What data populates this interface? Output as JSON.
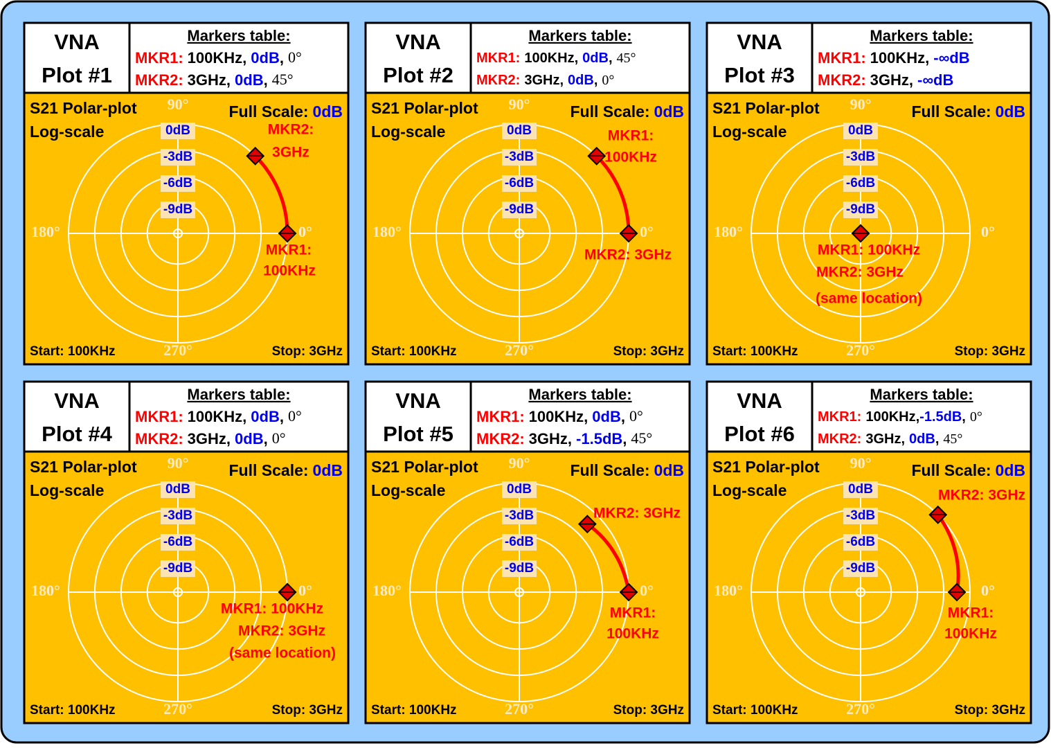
{
  "panels": [
    {
      "title": [
        "VNA",
        "Plot #1"
      ],
      "table_title": "Markers table:",
      "rows": [
        {
          "marker": "MKR1:",
          "freq": "100KHz,",
          "mag": {
            "value": 0,
            "label": "0dB"
          },
          "sep": ",",
          "angle": {
            "value": 0,
            "label": "0°"
          }
        },
        {
          "marker": "MKR2:",
          "freq": "3GHz,",
          "mag": {
            "value": 0,
            "label": "0dB"
          },
          "sep": ",",
          "angle": {
            "value": 45,
            "label": "45°"
          }
        }
      ],
      "plot_title": [
        "S21 Polar-plot",
        "Log-scale"
      ],
      "full_scale": [
        "Full Scale:",
        "0dB"
      ],
      "angle_labels": [
        "90°",
        "180°",
        "0°",
        "270°"
      ],
      "ring_labels": [
        "0dB",
        "-3dB",
        "-6dB",
        "-9dB"
      ],
      "start": "Start: 100KHz",
      "stop": "Stop: 3GHz",
      "annotations": [
        "MKR2:",
        "3GHz",
        "MKR1:",
        "100KHz"
      ]
    },
    {
      "title": [
        "VNA",
        "Plot #2"
      ],
      "table_title": "Markers table:",
      "rows": [
        {
          "marker": "MKR1:",
          "freq": "100KHz,",
          "mag": {
            "value": 0,
            "label": "0dB"
          },
          "sep": ",",
          "angle": {
            "value": 45,
            "label": "45°"
          }
        },
        {
          "marker": "MKR2:",
          "freq": "3GHz,",
          "mag": {
            "value": 0,
            "label": "0dB"
          },
          "sep": ",",
          "angle": {
            "value": 0,
            "label": "0°"
          }
        }
      ],
      "plot_title": [
        "S21 Polar-plot",
        "Log-scale"
      ],
      "full_scale": [
        "Full Scale:",
        "0dB"
      ],
      "angle_labels": [
        "90°",
        "180°",
        "0°",
        "270°"
      ],
      "ring_labels": [
        "0dB",
        "-3dB",
        "-6dB",
        "-9dB"
      ],
      "start": "Start: 100KHz",
      "stop": "Stop: 3GHz",
      "annotations": [
        "MKR1:",
        "100KHz",
        "MKR2: 3GHz"
      ]
    },
    {
      "title": [
        "VNA",
        "Plot #3"
      ],
      "table_title": "Markers table:",
      "rows": [
        {
          "marker": "MKR1:",
          "freq": "100KHz,",
          "mag": {
            "value": null,
            "label": "-∞dB"
          }
        },
        {
          "marker": "MKR2:",
          "freq": "3GHz,",
          "mag": {
            "value": null,
            "label": "-∞dB"
          }
        }
      ],
      "plot_title": [
        "S21 Polar-plot",
        "Log-scale"
      ],
      "full_scale": [
        "Full Scale:",
        "0dB"
      ],
      "angle_labels": [
        "90°",
        "180°",
        "0°",
        "270°"
      ],
      "ring_labels": [
        "0dB",
        "-3dB",
        "-6dB",
        "-9dB"
      ],
      "start": "Start: 100KHz",
      "stop": "Stop: 3GHz",
      "annotations": [
        "MKR1: 100KHz",
        "MKR2: 3GHz",
        "(same location)"
      ]
    },
    {
      "title": [
        "VNA",
        "Plot #4"
      ],
      "table_title": "Markers table:",
      "rows": [
        {
          "marker": "MKR1:",
          "freq": "100KHz,",
          "mag": {
            "value": 0,
            "label": "0dB"
          },
          "sep": ",",
          "angle": {
            "value": 0,
            "label": "0°"
          }
        },
        {
          "marker": "MKR2:",
          "freq": "3GHz,",
          "mag": {
            "value": 0,
            "label": "0dB"
          },
          "sep": ",",
          "angle": {
            "value": 0,
            "label": "0°"
          }
        }
      ],
      "plot_title": [
        "S21 Polar-plot",
        "Log-scale"
      ],
      "full_scale": [
        "Full Scale:",
        "0dB"
      ],
      "angle_labels": [
        "90°",
        "180°",
        "0°",
        "270°"
      ],
      "ring_labels": [
        "0dB",
        "-3dB",
        "-6dB",
        "-9dB"
      ],
      "start": "Start: 100KHz",
      "stop": "Stop: 3GHz",
      "annotations": [
        "MKR1: 100KHz",
        "MKR2: 3GHz",
        "(same location)"
      ]
    },
    {
      "title": [
        "VNA",
        "Plot #5"
      ],
      "table_title": "Markers table:",
      "rows": [
        {
          "marker": "MKR1:",
          "freq": "100KHz,",
          "mag": {
            "value": 0,
            "label": "0dB"
          },
          "sep": ",",
          "angle": {
            "value": 0,
            "label": "0°"
          }
        },
        {
          "marker": "MKR2:",
          "freq": "3GHz,",
          "mag": {
            "value": -1.5,
            "label": "-1.5dB"
          },
          "sep": ",",
          "angle": {
            "value": 45,
            "label": "45°"
          }
        }
      ],
      "plot_title": [
        "S21 Polar-plot",
        "Log-scale"
      ],
      "full_scale": [
        "Full Scale:",
        "0dB"
      ],
      "angle_labels": [
        "90°",
        "180°",
        "0°",
        "270°"
      ],
      "ring_labels": [
        "0dB",
        "-3dB",
        "-6dB",
        "-9dB"
      ],
      "start": "Start: 100KHz",
      "stop": "Stop: 3GHz",
      "annotations": [
        "MKR2: 3GHz",
        "MKR1:",
        "100KHz"
      ]
    },
    {
      "title": [
        "VNA",
        "Plot #6"
      ],
      "table_title": "Markers table:",
      "rows": [
        {
          "marker": "MKR1:",
          "freq": "100KHz,",
          "mag": {
            "value": -1.5,
            "label": "-1.5dB"
          },
          "sep": ",",
          "angle": {
            "value": 0,
            "label": "0°"
          }
        },
        {
          "marker": "MKR2:",
          "freq": "3GHz,",
          "mag": {
            "value": 0,
            "label": "0dB"
          },
          "sep": ",",
          "angle": {
            "value": 45,
            "label": "45°"
          }
        }
      ],
      "plot_title": [
        "S21 Polar-plot",
        "Log-scale"
      ],
      "full_scale": [
        "Full Scale:",
        "0dB"
      ],
      "angle_labels": [
        "90°",
        "180°",
        "0°",
        "270°"
      ],
      "ring_labels": [
        "0dB",
        "-3dB",
        "-6dB",
        "-9dB"
      ],
      "start": "Start: 100KHz",
      "stop": "Stop: 3GHz",
      "annotations": [
        "MKR2: 3GHz",
        "MKR1:",
        "100KHz"
      ]
    }
  ]
}
